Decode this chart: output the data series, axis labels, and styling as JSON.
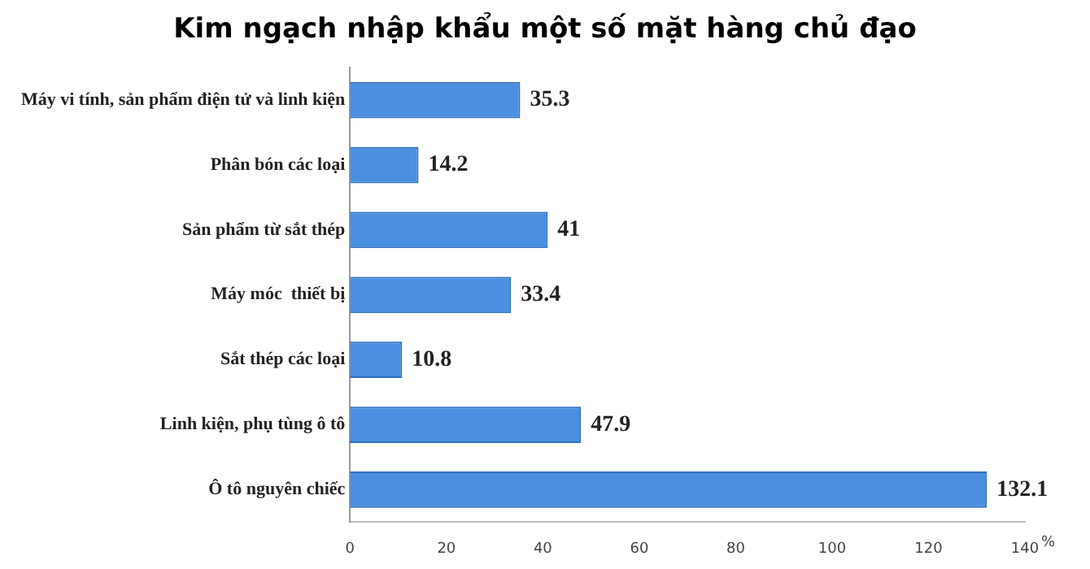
{
  "chart_data": {
    "type": "bar",
    "orientation": "horizontal",
    "title": "Kim ngạch nhập khẩu một số mặt hàng chủ đạo",
    "categories": [
      "Máy vi tính, sản phẩm điện tử và linh kiện",
      "Phân bón các loại",
      "Sản phẩm từ sắt thép",
      "Máy móc  thiết bị",
      "Sắt thép các loại",
      "Linh kiện, phụ tùng ô tô",
      "Ô tô nguyên chiếc"
    ],
    "values": [
      35.3,
      14.2,
      41,
      33.4,
      10.8,
      47.9,
      132.1
    ],
    "color": "#4a8fe0",
    "xlim": [
      0,
      140
    ],
    "xticks": [
      0,
      20,
      40,
      60,
      80,
      100,
      120,
      140
    ],
    "xlabel": "%",
    "data_labels": true,
    "grid": false,
    "legend": false
  }
}
